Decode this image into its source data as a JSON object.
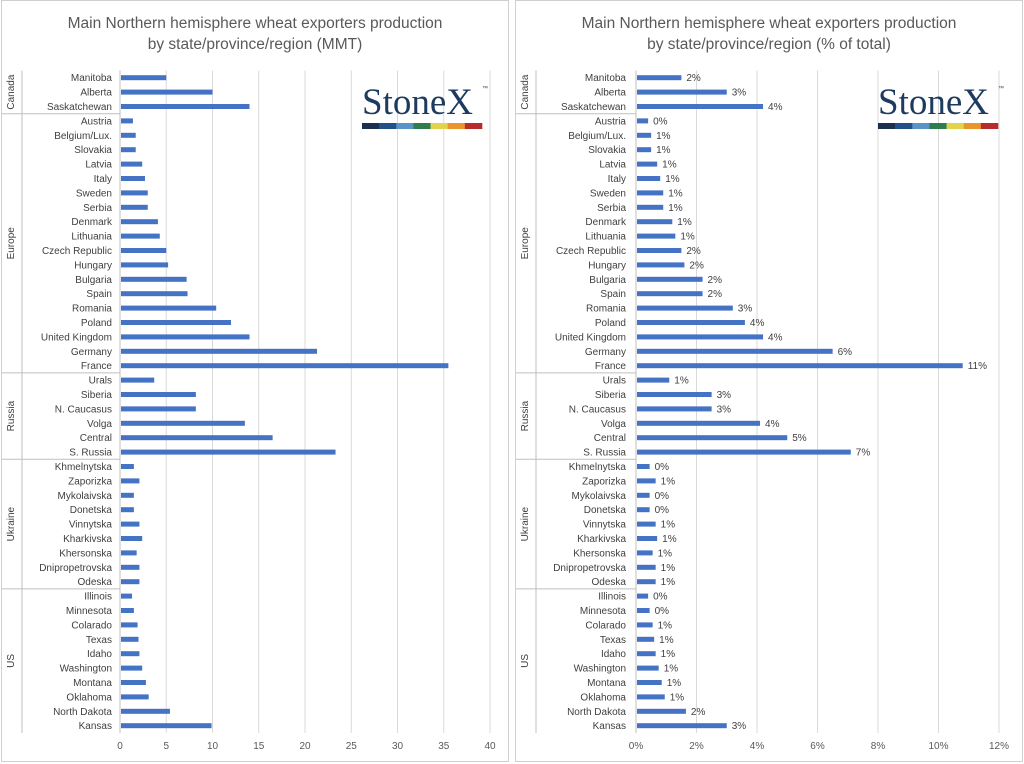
{
  "logo": {
    "text": "StoneX",
    "tm": "™",
    "stripe_colors": [
      "#1b2f4f",
      "#24508a",
      "#5a93c6",
      "#2f7d4f",
      "#e3d34a",
      "#e8962c",
      "#b72a2e"
    ]
  },
  "bar_color": "#4472c4",
  "grid_color": "#d9d9d9",
  "chart_data": [
    {
      "type": "bar",
      "orientation": "horizontal",
      "title": [
        "Main Northern hemisphere wheat exporters production",
        "by state/province/region (MMT)"
      ],
      "xlim": [
        0,
        40
      ],
      "xticks": [
        "0",
        "5",
        "10",
        "15",
        "20",
        "25",
        "30",
        "35",
        "40"
      ],
      "show_data_labels": false,
      "groups": [
        {
          "name": "Canada",
          "categories": [
            "Manitoba",
            "Alberta",
            "Saskatchewan"
          ],
          "values": [
            5,
            10,
            14
          ]
        },
        {
          "name": "Europe",
          "categories": [
            "Austria",
            "Belgium/Lux.",
            "Slovakia",
            "Latvia",
            "Italy",
            "Sweden",
            "Serbia",
            "Denmark",
            "Lithuania",
            "Czech Republic",
            "Hungary",
            "Bulgaria",
            "Spain",
            "Romania",
            "Poland",
            "United Kingdom",
            "Germany",
            "France"
          ],
          "values": [
            1.4,
            1.7,
            1.7,
            2.4,
            2.7,
            3.0,
            3.0,
            4.1,
            4.3,
            5.0,
            5.2,
            7.2,
            7.3,
            10.4,
            12.0,
            14.0,
            21.3,
            35.5
          ]
        },
        {
          "name": "Russia",
          "categories": [
            "Urals",
            "Siberia",
            "N. Caucasus",
            "Volga",
            "Central",
            "S. Russia"
          ],
          "values": [
            3.7,
            8.2,
            8.2,
            13.5,
            16.5,
            23.3
          ]
        },
        {
          "name": "Ukraine",
          "categories": [
            "Khmelnytska",
            "Zaporizka",
            "Mykolaivska",
            "Donetska",
            "Vinnytska",
            "Kharkivska",
            "Khersonska",
            "Dnipropetrovska",
            "Odeska"
          ],
          "values": [
            1.5,
            2.1,
            1.5,
            1.5,
            2.1,
            2.4,
            1.8,
            2.1,
            2.1
          ]
        },
        {
          "name": "US",
          "categories": [
            "Illinois",
            "Minnesota",
            "Colarado",
            "Texas",
            "Idaho",
            "Washington",
            "Montana",
            "Oklahoma",
            "North Dakota",
            "Kansas"
          ],
          "values": [
            1.3,
            1.5,
            1.9,
            2.0,
            2.1,
            2.4,
            2.8,
            3.1,
            5.4,
            9.9
          ]
        }
      ]
    },
    {
      "type": "bar",
      "orientation": "horizontal",
      "title": [
        "Main Northern hemisphere wheat exporters production",
        "by state/province/region (% of total)"
      ],
      "xlim": [
        0,
        12
      ],
      "xticks": [
        "0%",
        "2%",
        "4%",
        "6%",
        "8%",
        "10%",
        "12%"
      ],
      "show_data_labels": true,
      "groups": [
        {
          "name": "Canada",
          "categories": [
            "Manitoba",
            "Alberta",
            "Saskatchewan"
          ],
          "values": [
            1.5,
            3.0,
            4.2
          ],
          "labels": [
            "2%",
            "3%",
            "4%"
          ]
        },
        {
          "name": "Europe",
          "categories": [
            "Austria",
            "Belgium/Lux.",
            "Slovakia",
            "Latvia",
            "Italy",
            "Sweden",
            "Serbia",
            "Denmark",
            "Lithuania",
            "Czech Republic",
            "Hungary",
            "Bulgaria",
            "Spain",
            "Romania",
            "Poland",
            "United Kingdom",
            "Germany",
            "France"
          ],
          "values": [
            0.4,
            0.5,
            0.5,
            0.7,
            0.8,
            0.9,
            0.9,
            1.2,
            1.3,
            1.5,
            1.6,
            2.2,
            2.2,
            3.2,
            3.6,
            4.2,
            6.5,
            10.8
          ],
          "labels": [
            "0%",
            "1%",
            "1%",
            "1%",
            "1%",
            "1%",
            "1%",
            "1%",
            "1%",
            "2%",
            "2%",
            "2%",
            "2%",
            "3%",
            "4%",
            "4%",
            "6%",
            "11%"
          ]
        },
        {
          "name": "Russia",
          "categories": [
            "Urals",
            "Siberia",
            "N. Caucasus",
            "Volga",
            "Central",
            "S. Russia"
          ],
          "values": [
            1.1,
            2.5,
            2.5,
            4.1,
            5.0,
            7.1
          ],
          "labels": [
            "1%",
            "3%",
            "3%",
            "4%",
            "5%",
            "7%"
          ]
        },
        {
          "name": "Ukraine",
          "categories": [
            "Khmelnytska",
            "Zaporizka",
            "Mykolaivska",
            "Donetska",
            "Vinnytska",
            "Kharkivska",
            "Khersonska",
            "Dnipropetrovska",
            "Odeska"
          ],
          "values": [
            0.45,
            0.65,
            0.45,
            0.45,
            0.65,
            0.7,
            0.55,
            0.65,
            0.65
          ],
          "labels": [
            "0%",
            "1%",
            "0%",
            "0%",
            "1%",
            "1%",
            "1%",
            "1%",
            "1%"
          ]
        },
        {
          "name": "US",
          "categories": [
            "Illinois",
            "Minnesota",
            "Colarado",
            "Texas",
            "Idaho",
            "Washington",
            "Montana",
            "Oklahoma",
            "North Dakota",
            "Kansas"
          ],
          "values": [
            0.4,
            0.45,
            0.55,
            0.6,
            0.65,
            0.75,
            0.85,
            0.95,
            1.65,
            3.0
          ],
          "labels": [
            "0%",
            "0%",
            "1%",
            "1%",
            "1%",
            "1%",
            "1%",
            "1%",
            "2%",
            "3%"
          ]
        }
      ]
    }
  ]
}
